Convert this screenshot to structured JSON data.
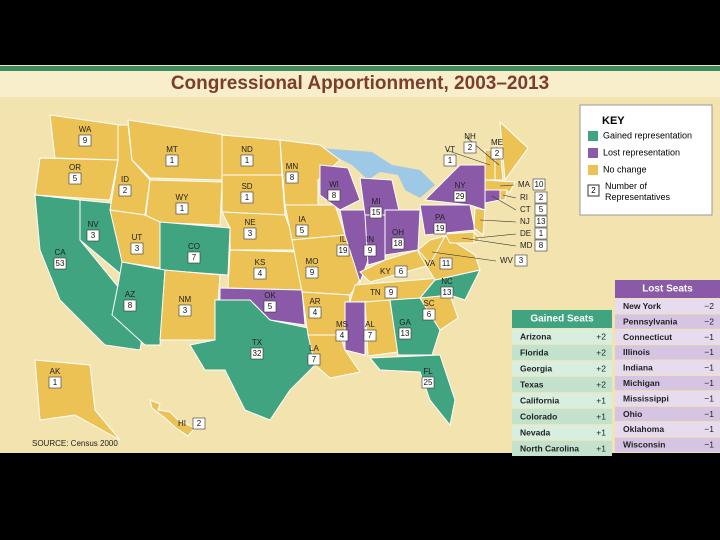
{
  "title": "Congressional Apportionment, 2003–2013",
  "source": "SOURCE: Census 2000",
  "key": {
    "title": "KEY",
    "items": [
      {
        "label": "Gained representation",
        "color": "#3fa47f"
      },
      {
        "label": "Lost representation",
        "color": "#8a5aa8"
      },
      {
        "label": "No change",
        "color": "#ecc254"
      }
    ],
    "sample_number": "2",
    "number_label": "Number of Representatives"
  },
  "states": [
    {
      "abbr": "WA",
      "reps": 9,
      "color": "#ecc254"
    },
    {
      "abbr": "OR",
      "reps": 5,
      "color": "#ecc254"
    },
    {
      "abbr": "CA",
      "reps": 53,
      "color": "#3fa47f"
    },
    {
      "abbr": "NV",
      "reps": 3,
      "color": "#3fa47f"
    },
    {
      "abbr": "ID",
      "reps": 2,
      "color": "#ecc254"
    },
    {
      "abbr": "MT",
      "reps": 1,
      "color": "#ecc254"
    },
    {
      "abbr": "WY",
      "reps": 1,
      "color": "#ecc254"
    },
    {
      "abbr": "UT",
      "reps": 3,
      "color": "#ecc254"
    },
    {
      "abbr": "CO",
      "reps": 7,
      "color": "#3fa47f"
    },
    {
      "abbr": "AZ",
      "reps": 8,
      "color": "#3fa47f"
    },
    {
      "abbr": "NM",
      "reps": 3,
      "color": "#ecc254"
    },
    {
      "abbr": "ND",
      "reps": 1,
      "color": "#ecc254"
    },
    {
      "abbr": "SD",
      "reps": 1,
      "color": "#ecc254"
    },
    {
      "abbr": "NE",
      "reps": 3,
      "color": "#ecc254"
    },
    {
      "abbr": "KS",
      "reps": 4,
      "color": "#ecc254"
    },
    {
      "abbr": "OK",
      "reps": 5,
      "color": "#8a5aa8"
    },
    {
      "abbr": "TX",
      "reps": 32,
      "color": "#3fa47f"
    },
    {
      "abbr": "MN",
      "reps": 8,
      "color": "#ecc254"
    },
    {
      "abbr": "IA",
      "reps": 5,
      "color": "#ecc254"
    },
    {
      "abbr": "MO",
      "reps": 9,
      "color": "#ecc254"
    },
    {
      "abbr": "AR",
      "reps": 4,
      "color": "#ecc254"
    },
    {
      "abbr": "LA",
      "reps": 7,
      "color": "#ecc254"
    },
    {
      "abbr": "WI",
      "reps": 8,
      "color": "#8a5aa8"
    },
    {
      "abbr": "IL",
      "reps": 19,
      "color": "#8a5aa8"
    },
    {
      "abbr": "MI",
      "reps": 15,
      "color": "#8a5aa8"
    },
    {
      "abbr": "IN",
      "reps": 9,
      "color": "#8a5aa8"
    },
    {
      "abbr": "OH",
      "reps": 18,
      "color": "#8a5aa8"
    },
    {
      "abbr": "KY",
      "reps": 6,
      "color": "#ecc254"
    },
    {
      "abbr": "TN",
      "reps": 9,
      "color": "#ecc254"
    },
    {
      "abbr": "MS",
      "reps": 4,
      "color": "#8a5aa8"
    },
    {
      "abbr": "AL",
      "reps": 7,
      "color": "#ecc254"
    },
    {
      "abbr": "GA",
      "reps": 13,
      "color": "#3fa47f"
    },
    {
      "abbr": "FL",
      "reps": 25,
      "color": "#3fa47f"
    },
    {
      "abbr": "SC",
      "reps": 6,
      "color": "#ecc254"
    },
    {
      "abbr": "NC",
      "reps": 13,
      "color": "#3fa47f"
    },
    {
      "abbr": "VA",
      "reps": 11,
      "color": "#ecc254"
    },
    {
      "abbr": "WV",
      "reps": 3,
      "color": "#ecc254"
    },
    {
      "abbr": "PA",
      "reps": 19,
      "color": "#8a5aa8"
    },
    {
      "abbr": "NY",
      "reps": 29,
      "color": "#8a5aa8"
    },
    {
      "abbr": "VT",
      "reps": 1,
      "color": "#ecc254"
    },
    {
      "abbr": "NH",
      "reps": 2,
      "color": "#ecc254"
    },
    {
      "abbr": "ME",
      "reps": 2,
      "color": "#ecc254"
    },
    {
      "abbr": "MA",
      "reps": 10,
      "color": "#ecc254"
    },
    {
      "abbr": "RI",
      "reps": 2,
      "color": "#ecc254"
    },
    {
      "abbr": "CT",
      "reps": 5,
      "color": "#8a5aa8"
    },
    {
      "abbr": "NJ",
      "reps": 13,
      "color": "#ecc254"
    },
    {
      "abbr": "DE",
      "reps": 1,
      "color": "#ecc254"
    },
    {
      "abbr": "MD",
      "reps": 8,
      "color": "#ecc254"
    },
    {
      "abbr": "AK",
      "reps": 1,
      "color": "#ecc254"
    },
    {
      "abbr": "HI",
      "reps": 2,
      "color": "#ecc254"
    }
  ],
  "gained_table": {
    "title": "Gained Seats",
    "color": "#3fa47f",
    "rows": [
      [
        "Arizona",
        "+2"
      ],
      [
        "Florida",
        "+2"
      ],
      [
        "Georgia",
        "+2"
      ],
      [
        "Texas",
        "+2"
      ],
      [
        "California",
        "+1"
      ],
      [
        "Colorado",
        "+1"
      ],
      [
        "Nevada",
        "+1"
      ],
      [
        "North Carolina",
        "+1"
      ]
    ]
  },
  "lost_table": {
    "title": "Lost Seats",
    "color": "#8a5aa8",
    "rows": [
      [
        "New York",
        "−2"
      ],
      [
        "Pennsylvania",
        "−2"
      ],
      [
        "Connecticut",
        "−1"
      ],
      [
        "Illinois",
        "−1"
      ],
      [
        "Indiana",
        "−1"
      ],
      [
        "Michigan",
        "−1"
      ],
      [
        "Mississippi",
        "−1"
      ],
      [
        "Ohio",
        "−1"
      ],
      [
        "Oklahoma",
        "−1"
      ],
      [
        "Wisconsin",
        "−1"
      ]
    ]
  }
}
